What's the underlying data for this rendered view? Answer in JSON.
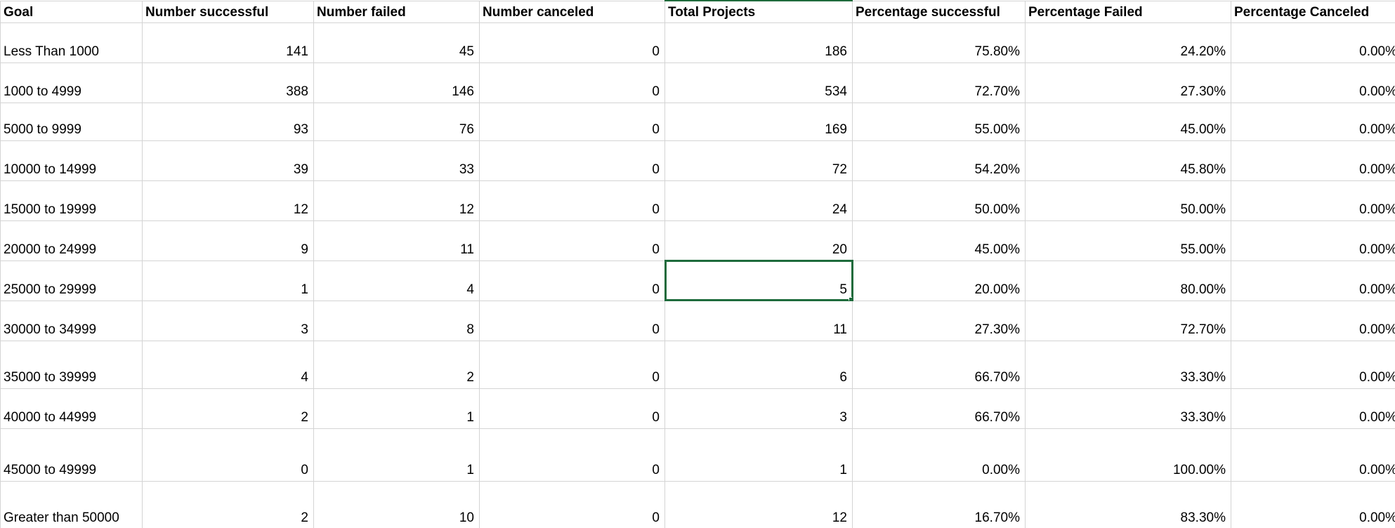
{
  "colors": {
    "grid_line": "#d4d4d4",
    "selection": "#1e6b3c",
    "text": "#000000",
    "background": "#ffffff"
  },
  "headers": [
    "Goal",
    "Number successful",
    "Number failed",
    "Number canceled",
    "Total Projects",
    "Percentage successful",
    "Percentage Failed",
    "Percentage Canceled"
  ],
  "rows": [
    [
      "Less Than 1000",
      "141",
      "45",
      "0",
      "186",
      "75.80%",
      "24.20%",
      "0.00%"
    ],
    [
      "1000 to 4999",
      "388",
      "146",
      "0",
      "534",
      "72.70%",
      "27.30%",
      "0.00%"
    ],
    [
      "5000 to 9999",
      "93",
      "76",
      "0",
      "169",
      "55.00%",
      "45.00%",
      "0.00%"
    ],
    [
      "10000 to 14999",
      "39",
      "33",
      "0",
      "72",
      "54.20%",
      "45.80%",
      "0.00%"
    ],
    [
      "15000 to 19999",
      "12",
      "12",
      "0",
      "24",
      "50.00%",
      "50.00%",
      "0.00%"
    ],
    [
      "20000 to 24999",
      "9",
      "11",
      "0",
      "20",
      "45.00%",
      "55.00%",
      "0.00%"
    ],
    [
      "25000 to 29999",
      "1",
      "4",
      "0",
      "5",
      "20.00%",
      "80.00%",
      "0.00%"
    ],
    [
      "30000 to 34999",
      "3",
      "8",
      "0",
      "11",
      "27.30%",
      "72.70%",
      "0.00%"
    ],
    [
      "35000 to 39999",
      "4",
      "2",
      "0",
      "6",
      "66.70%",
      "33.30%",
      "0.00%"
    ],
    [
      "40000 to 44999",
      "2",
      "1",
      "0",
      "3",
      "66.70%",
      "33.30%",
      "0.00%"
    ],
    [
      "45000 to 49999",
      "0",
      "1",
      "0",
      "1",
      "0.00%",
      "100.00%",
      "0.00%"
    ],
    [
      "Greater than 50000",
      "2",
      "10",
      "0",
      "12",
      "16.70%",
      "83.30%",
      "0.00%"
    ]
  ],
  "selected_cell": {
    "row": 7,
    "col": 5
  }
}
